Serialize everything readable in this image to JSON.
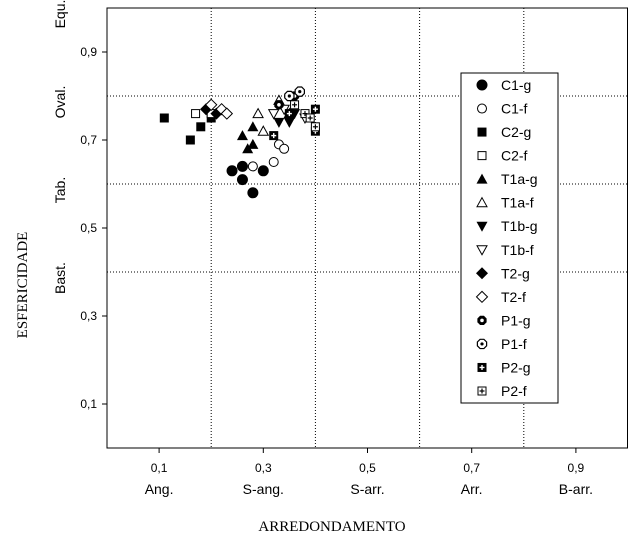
{
  "chart_data": {
    "type": "scatter",
    "xlabel": "ARREDONDAMENTO",
    "ylabel": "ESFERICIDADE",
    "xlim": [
      0.0,
      1.0
    ],
    "ylim": [
      0.0,
      1.0
    ],
    "x_ticks": [
      0.1,
      0.3,
      0.5,
      0.7,
      0.9
    ],
    "x_tick_labels": [
      "0,1",
      "0,3",
      "0,5",
      "0,7",
      "0,9"
    ],
    "y_ticks": [
      0.1,
      0.3,
      0.5,
      0.7,
      0.9
    ],
    "y_tick_labels": [
      "0,1",
      "0,3",
      "0,5",
      "0,7",
      "0,9"
    ],
    "x_class_boundaries": [
      0.2,
      0.4,
      0.6,
      0.8
    ],
    "y_class_boundaries": [
      0.4,
      0.6,
      0.8
    ],
    "x_classes": [
      {
        "label": "Ang.",
        "x": 0.1
      },
      {
        "label": "S-ang.",
        "x": 0.3
      },
      {
        "label": "S-arr.",
        "x": 0.5
      },
      {
        "label": "Arr.",
        "x": 0.7
      },
      {
        "label": "B-arr.",
        "x": 0.9
      }
    ],
    "y_classes": [
      {
        "label": "Bast.",
        "y": 0.3
      },
      {
        "label": "Tab.",
        "y": 0.5
      },
      {
        "label": "Oval.",
        "y": 0.7
      },
      {
        "label": "Equ.",
        "y": 0.9
      }
    ],
    "grid": "dotted class boundaries",
    "legend_position": "right",
    "series": [
      {
        "name": "C1-g",
        "marker": "circle-filled",
        "points": [
          [
            0.24,
            0.63
          ],
          [
            0.26,
            0.64
          ],
          [
            0.26,
            0.61
          ],
          [
            0.28,
            0.58
          ],
          [
            0.3,
            0.63
          ]
        ]
      },
      {
        "name": "C1-f",
        "marker": "circle-open",
        "points": [
          [
            0.28,
            0.64
          ],
          [
            0.32,
            0.65
          ],
          [
            0.33,
            0.69
          ],
          [
            0.34,
            0.68
          ]
        ]
      },
      {
        "name": "C2-g",
        "marker": "square-filled",
        "points": [
          [
            0.11,
            0.75
          ],
          [
            0.16,
            0.7
          ],
          [
            0.18,
            0.73
          ],
          [
            0.2,
            0.75
          ]
        ]
      },
      {
        "name": "C2-f",
        "marker": "square-open",
        "points": [
          [
            0.17,
            0.76
          ],
          [
            0.2,
            0.76
          ]
        ]
      },
      {
        "name": "T1a-g",
        "marker": "triangle-up-filled",
        "points": [
          [
            0.26,
            0.71
          ],
          [
            0.27,
            0.68
          ],
          [
            0.28,
            0.73
          ],
          [
            0.28,
            0.69
          ]
        ]
      },
      {
        "name": "T1a-f",
        "marker": "triangle-up-open",
        "points": [
          [
            0.29,
            0.76
          ],
          [
            0.3,
            0.72
          ],
          [
            0.33,
            0.79
          ],
          [
            0.35,
            0.76
          ]
        ]
      },
      {
        "name": "T1b-g",
        "marker": "triangle-down-filled",
        "points": [
          [
            0.33,
            0.74
          ],
          [
            0.35,
            0.74
          ],
          [
            0.36,
            0.76
          ]
        ]
      },
      {
        "name": "T1b-f",
        "marker": "triangle-down-open",
        "points": [
          [
            0.32,
            0.76
          ],
          [
            0.34,
            0.77
          ],
          [
            0.38,
            0.75
          ]
        ]
      },
      {
        "name": "T2-g",
        "marker": "diamond-filled",
        "points": [
          [
            0.19,
            0.77
          ],
          [
            0.21,
            0.76
          ]
        ]
      },
      {
        "name": "T2-f",
        "marker": "diamond-open",
        "points": [
          [
            0.2,
            0.78
          ],
          [
            0.22,
            0.77
          ],
          [
            0.23,
            0.76
          ]
        ]
      },
      {
        "name": "P1-g",
        "marker": "hex-dot",
        "points": [
          [
            0.33,
            0.78
          ],
          [
            0.36,
            0.8
          ]
        ]
      },
      {
        "name": "P1-f",
        "marker": "hex-dot-open",
        "points": [
          [
            0.35,
            0.8
          ],
          [
            0.37,
            0.81
          ]
        ]
      },
      {
        "name": "P2-g",
        "marker": "square-cross",
        "points": [
          [
            0.32,
            0.71
          ],
          [
            0.35,
            0.76
          ],
          [
            0.4,
            0.77
          ],
          [
            0.4,
            0.72
          ]
        ]
      },
      {
        "name": "P2-f",
        "marker": "square-cross-open",
        "points": [
          [
            0.36,
            0.78
          ],
          [
            0.38,
            0.76
          ],
          [
            0.39,
            0.75
          ],
          [
            0.4,
            0.73
          ]
        ]
      }
    ]
  }
}
